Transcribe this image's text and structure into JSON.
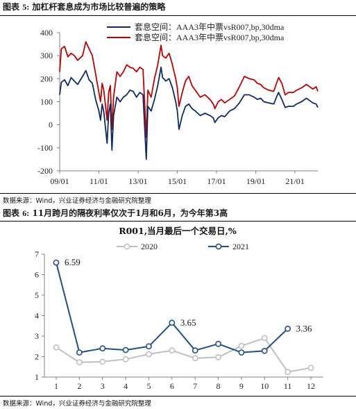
{
  "figures": [
    {
      "title_prefix": "图表",
      "title_number": "5:",
      "title": "加杠杆套息成为市场比较普遍的策略",
      "source": "数据来源：Wind，兴业证券经济与金融研究院整理"
    },
    {
      "title_prefix": "图表",
      "title_number": "6:",
      "title": "11月跨月的隔夜利率仅次于1月和6月，为今年第3高",
      "source": "数据来源：Wind，兴业证券经济与金融研究院整理"
    }
  ],
  "colors": {
    "navy": "#0e2a66",
    "red": "#c00000",
    "blue2021": "#1f4e8c",
    "gray2020": "#bfbfbf"
  },
  "chart_data": [
    {
      "type": "line",
      "title": "",
      "x_tick_labels": [
        "09/01",
        "11/01",
        "13/01",
        "15/01",
        "17/01",
        "19/01",
        "21/01"
      ],
      "y_tick_labels": [
        "-200",
        "-100",
        "0",
        "100",
        "200",
        "300",
        "400"
      ],
      "ylim": [
        -200,
        400
      ],
      "x_range": [
        "2009-01",
        "2022-03"
      ],
      "grid": false,
      "legend_position": "top-center",
      "series": [
        {
          "name": "套息空间：AAA3年中票vsR007,bp,30dma",
          "color": "#0e2a66",
          "points": [
            [
              "2009-01",
              130
            ],
            [
              "2009-02",
              185
            ],
            [
              "2009-04",
              195
            ],
            [
              "2009-06",
              170
            ],
            [
              "2009-08",
              205
            ],
            [
              "2009-10",
              190
            ],
            [
              "2009-12",
              175
            ],
            [
              "2010-03",
              210
            ],
            [
              "2010-05",
              235
            ],
            [
              "2010-07",
              195
            ],
            [
              "2010-09",
              180
            ],
            [
              "2010-11",
              110
            ],
            [
              "2011-01",
              60
            ],
            [
              "2011-02",
              20
            ],
            [
              "2011-03",
              90
            ],
            [
              "2011-04",
              55
            ],
            [
              "2011-06",
              -80
            ],
            [
              "2011-07",
              50
            ],
            [
              "2011-08",
              90
            ],
            [
              "2011-09",
              -110
            ],
            [
              "2011-10",
              40
            ],
            [
              "2011-12",
              120
            ],
            [
              "2012-02",
              100
            ],
            [
              "2012-04",
              120
            ],
            [
              "2012-06",
              130
            ],
            [
              "2012-08",
              150
            ],
            [
              "2012-10",
              145
            ],
            [
              "2012-12",
              120
            ],
            [
              "2013-02",
              140
            ],
            [
              "2013-04",
              130
            ],
            [
              "2013-06",
              -150
            ],
            [
              "2013-07",
              80
            ],
            [
              "2013-09",
              60
            ],
            [
              "2013-11",
              110
            ],
            [
              "2014-01",
              170
            ],
            [
              "2014-03",
              250
            ],
            [
              "2014-04",
              205
            ],
            [
              "2014-06",
              190
            ],
            [
              "2014-08",
              200
            ],
            [
              "2014-10",
              160
            ],
            [
              "2014-12",
              100
            ],
            [
              "2015-01",
              60
            ],
            [
              "2015-02",
              -20
            ],
            [
              "2015-04",
              40
            ],
            [
              "2015-06",
              80
            ],
            [
              "2015-08",
              90
            ],
            [
              "2015-10",
              70
            ],
            [
              "2015-12",
              60
            ],
            [
              "2016-03",
              40
            ],
            [
              "2016-06",
              50
            ],
            [
              "2016-09",
              40
            ],
            [
              "2016-11",
              30
            ],
            [
              "2016-12",
              10
            ],
            [
              "2017-02",
              30
            ],
            [
              "2017-04",
              40
            ],
            [
              "2017-06",
              35
            ],
            [
              "2017-09",
              60
            ],
            [
              "2017-12",
              70
            ],
            [
              "2018-03",
              95
            ],
            [
              "2018-06",
              130
            ],
            [
              "2018-09",
              130
            ],
            [
              "2018-12",
              120
            ],
            [
              "2019-02",
              110
            ],
            [
              "2019-04",
              115
            ],
            [
              "2019-06",
              100
            ],
            [
              "2019-09",
              95
            ],
            [
              "2019-12",
              90
            ],
            [
              "2020-02",
              125
            ],
            [
              "2020-03",
              140
            ],
            [
              "2020-05",
              110
            ],
            [
              "2020-07",
              75
            ],
            [
              "2020-09",
              80
            ],
            [
              "2020-12",
              80
            ],
            [
              "2021-02",
              90
            ],
            [
              "2021-05",
              100
            ],
            [
              "2021-08",
              115
            ],
            [
              "2021-10",
              105
            ],
            [
              "2021-12",
              95
            ],
            [
              "2022-02",
              90
            ],
            [
              "2022-03",
              75
            ]
          ]
        },
        {
          "name": "套息空间：AAA3年中票vsR007,bp,30dma",
          "color": "#c00000",
          "points": [
            [
              "2009-01",
              230
            ],
            [
              "2009-02",
              330
            ],
            [
              "2009-04",
              340
            ],
            [
              "2009-06",
              295
            ],
            [
              "2009-08",
              310
            ],
            [
              "2009-10",
              300
            ],
            [
              "2009-12",
              280
            ],
            [
              "2010-03",
              300
            ],
            [
              "2010-05",
              360
            ],
            [
              "2010-07",
              330
            ],
            [
              "2010-09",
              300
            ],
            [
              "2010-11",
              220
            ],
            [
              "2011-01",
              140
            ],
            [
              "2011-02",
              100
            ],
            [
              "2011-03",
              180
            ],
            [
              "2011-04",
              150
            ],
            [
              "2011-06",
              20
            ],
            [
              "2011-07",
              140
            ],
            [
              "2011-08",
              170
            ],
            [
              "2011-09",
              -20
            ],
            [
              "2011-10",
              120
            ],
            [
              "2011-12",
              230
            ],
            [
              "2012-02",
              210
            ],
            [
              "2012-04",
              230
            ],
            [
              "2012-06",
              260
            ],
            [
              "2012-08",
              250
            ],
            [
              "2012-10",
              245
            ],
            [
              "2012-12",
              230
            ],
            [
              "2013-02",
              250
            ],
            [
              "2013-04",
              240
            ],
            [
              "2013-06",
              -55
            ],
            [
              "2013-07",
              150
            ],
            [
              "2013-09",
              120
            ],
            [
              "2013-11",
              200
            ],
            [
              "2014-01",
              260
            ],
            [
              "2014-03",
              345
            ],
            [
              "2014-04",
              300
            ],
            [
              "2014-06",
              290
            ],
            [
              "2014-08",
              310
            ],
            [
              "2014-10",
              260
            ],
            [
              "2014-12",
              200
            ],
            [
              "2015-01",
              160
            ],
            [
              "2015-02",
              80
            ],
            [
              "2015-04",
              140
            ],
            [
              "2015-06",
              190
            ],
            [
              "2015-08",
              210
            ],
            [
              "2015-10",
              170
            ],
            [
              "2015-12",
              150
            ],
            [
              "2016-03",
              120
            ],
            [
              "2016-06",
              130
            ],
            [
              "2016-09",
              110
            ],
            [
              "2016-11",
              90
            ],
            [
              "2016-12",
              70
            ],
            [
              "2017-02",
              100
            ],
            [
              "2017-04",
              110
            ],
            [
              "2017-06",
              95
            ],
            [
              "2017-09",
              110
            ],
            [
              "2017-12",
              125
            ],
            [
              "2018-03",
              165
            ],
            [
              "2018-06",
              210
            ],
            [
              "2018-09",
              200
            ],
            [
              "2018-12",
              195
            ],
            [
              "2019-02",
              180
            ],
            [
              "2019-04",
              175
            ],
            [
              "2019-06",
              160
            ],
            [
              "2019-09",
              150
            ],
            [
              "2019-12",
              145
            ],
            [
              "2020-02",
              185
            ],
            [
              "2020-03",
              205
            ],
            [
              "2020-05",
              180
            ],
            [
              "2020-07",
              130
            ],
            [
              "2020-09",
              140
            ],
            [
              "2020-12",
              140
            ],
            [
              "2021-02",
              150
            ],
            [
              "2021-05",
              160
            ],
            [
              "2021-08",
              175
            ],
            [
              "2021-10",
              165
            ],
            [
              "2021-12",
              155
            ],
            [
              "2022-02",
              165
            ],
            [
              "2022-03",
              145
            ]
          ]
        }
      ]
    },
    {
      "type": "line",
      "title": "R001,当月最后一个交易日,%",
      "categories": [
        "1",
        "2",
        "3",
        "4",
        "5",
        "6",
        "7",
        "8",
        "9",
        "10",
        "11",
        "12"
      ],
      "y_tick_labels": [
        "1",
        "2",
        "3",
        "4",
        "5",
        "6",
        "7"
      ],
      "ylim": [
        1,
        7
      ],
      "grid": false,
      "legend_position": "top-center",
      "series": [
        {
          "name": "2020",
          "color": "#bfbfbf",
          "values": [
            2.45,
            1.72,
            1.75,
            1.87,
            2.12,
            2.3,
            1.92,
            1.97,
            2.52,
            2.9,
            1.25,
            1.45
          ]
        },
        {
          "name": "2021",
          "color": "#1f4e8c",
          "values": [
            6.59,
            2.2,
            2.4,
            2.32,
            2.5,
            3.65,
            2.3,
            2.62,
            2.2,
            2.28,
            3.36,
            null
          ]
        }
      ],
      "data_labels": [
        {
          "category": "1",
          "text": "6.59"
        },
        {
          "category": "6",
          "text": "3.65"
        },
        {
          "category": "11",
          "text": "3.36"
        }
      ]
    }
  ]
}
